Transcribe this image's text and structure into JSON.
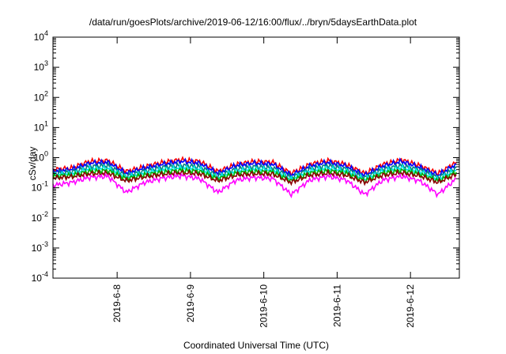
{
  "chart_data": {
    "type": "line",
    "title": "/data/run/goesPlots/archive/2019-06-12/16:00/flux/../bryn/5daysEarthData.plot",
    "xlabel": "Coordinated Universal Time (UTC)",
    "ylabel": "cSv/day",
    "yscale": "log",
    "ylim": [
      0.0001,
      10000
    ],
    "y_ticks": [
      {
        "label": "10",
        "exp": "-4",
        "value": 0.0001
      },
      {
        "label": "10",
        "exp": "-3",
        "value": 0.001
      },
      {
        "label": "10",
        "exp": "-2",
        "value": 0.01
      },
      {
        "label": "10",
        "exp": "-1",
        "value": 0.1
      },
      {
        "label": "10",
        "exp": "0",
        "value": 1
      },
      {
        "label": "10",
        "exp": "1",
        "value": 10
      },
      {
        "label": "10",
        "exp": "2",
        "value": 100
      },
      {
        "label": "10",
        "exp": "3",
        "value": 1000
      },
      {
        "label": "10",
        "exp": "4",
        "value": 10000
      }
    ],
    "xlim": [
      "2019-06-07T03:00",
      "2019-06-12T16:00"
    ],
    "x_ticks": [
      "2019-6-8",
      "2019-6-9",
      "2019-6-10",
      "2019-6-11",
      "2019-6-12"
    ],
    "x_tick_dates": [
      "2019-06-08",
      "2019-06-09",
      "2019-06-10",
      "2019-06-11",
      "2019-06-12"
    ],
    "grid": false,
    "legend": "none",
    "x_series": [
      "2019-06-07T03:00",
      "2019-06-07T09:00",
      "2019-06-07T15:00",
      "2019-06-07T21:00",
      "2019-06-08T03:00",
      "2019-06-08T09:00",
      "2019-06-08T15:00",
      "2019-06-08T21:00",
      "2019-06-09T03:00",
      "2019-06-09T09:00",
      "2019-06-09T15:00",
      "2019-06-09T21:00",
      "2019-06-10T03:00",
      "2019-06-10T09:00",
      "2019-06-10T15:00",
      "2019-06-10T21:00",
      "2019-06-11T03:00",
      "2019-06-11T09:00",
      "2019-06-11T15:00",
      "2019-06-11T21:00",
      "2019-06-12T03:00",
      "2019-06-12T09:00",
      "2019-06-12T15:00"
    ],
    "series": [
      {
        "color": "#ff0000",
        "values": [
          0.4,
          0.45,
          0.75,
          0.8,
          0.35,
          0.5,
          0.7,
          0.85,
          0.75,
          0.35,
          0.6,
          0.75,
          0.7,
          0.3,
          0.6,
          0.8,
          0.6,
          0.3,
          0.6,
          0.85,
          0.55,
          0.3,
          0.7
        ]
      },
      {
        "color": "#0000ff",
        "values": [
          0.35,
          0.4,
          0.65,
          0.7,
          0.3,
          0.45,
          0.6,
          0.75,
          0.65,
          0.3,
          0.55,
          0.65,
          0.6,
          0.26,
          0.52,
          0.7,
          0.52,
          0.26,
          0.52,
          0.75,
          0.48,
          0.26,
          0.6
        ]
      },
      {
        "color": "#008080",
        "values": [
          0.3,
          0.33,
          0.5,
          0.55,
          0.25,
          0.36,
          0.48,
          0.55,
          0.5,
          0.25,
          0.42,
          0.5,
          0.46,
          0.22,
          0.42,
          0.55,
          0.42,
          0.22,
          0.42,
          0.55,
          0.4,
          0.22,
          0.46
        ]
      },
      {
        "color": "#00e5e5",
        "values": [
          0.27,
          0.29,
          0.42,
          0.45,
          0.22,
          0.31,
          0.4,
          0.46,
          0.42,
          0.22,
          0.36,
          0.42,
          0.39,
          0.19,
          0.36,
          0.45,
          0.36,
          0.19,
          0.36,
          0.46,
          0.34,
          0.19,
          0.39
        ]
      },
      {
        "color": "#00b000",
        "values": [
          0.24,
          0.26,
          0.35,
          0.37,
          0.2,
          0.27,
          0.33,
          0.38,
          0.35,
          0.2,
          0.31,
          0.35,
          0.33,
          0.17,
          0.31,
          0.37,
          0.31,
          0.17,
          0.31,
          0.38,
          0.29,
          0.17,
          0.33
        ]
      },
      {
        "color": "#8b0000",
        "values": [
          0.21,
          0.23,
          0.29,
          0.3,
          0.17,
          0.23,
          0.28,
          0.31,
          0.29,
          0.17,
          0.26,
          0.29,
          0.28,
          0.15,
          0.26,
          0.3,
          0.26,
          0.15,
          0.26,
          0.31,
          0.25,
          0.15,
          0.28
        ]
      },
      {
        "color": "#ff00ff",
        "values": [
          0.12,
          0.15,
          0.22,
          0.24,
          0.07,
          0.15,
          0.21,
          0.25,
          0.2,
          0.07,
          0.18,
          0.22,
          0.2,
          0.06,
          0.18,
          0.24,
          0.18,
          0.06,
          0.18,
          0.24,
          0.17,
          0.06,
          0.2
        ]
      }
    ]
  }
}
